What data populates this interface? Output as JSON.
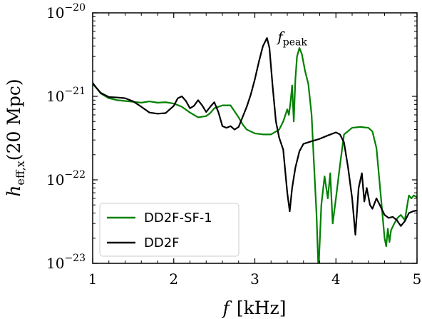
{
  "chart_data": {
    "type": "line",
    "xlabel": {
      "symbol": "f",
      "unit": "[kHz]"
    },
    "ylabel": {
      "symbol": "h",
      "subscript": "eff,x",
      "tail": "(20 Mpc)"
    },
    "xlim": [
      1,
      5
    ],
    "ylim": [
      1e-23,
      1e-20
    ],
    "yscale": "log",
    "x_ticks": [
      1,
      2,
      3,
      4,
      5
    ],
    "x_tick_labels": [
      "1",
      "2",
      "3",
      "4",
      "5"
    ],
    "y_ticks": [
      1e-23,
      1e-22,
      1e-21,
      1e-20
    ],
    "y_tick_labels": [
      {
        "base": "10",
        "exp": "−23"
      },
      {
        "base": "10",
        "exp": "−22"
      },
      {
        "base": "10",
        "exp": "−21"
      },
      {
        "base": "10",
        "exp": "−20"
      }
    ],
    "grid": false,
    "legend_position": "lower-left",
    "annotation": {
      "symbol": "f",
      "subscript": "peak",
      "x": 3.28,
      "y": 4.5e-21
    },
    "series": [
      {
        "name": "DD2F-SF-1",
        "color": "#008000",
        "points": [
          [
            1.0,
            1.4e-21
          ],
          [
            1.05,
            1.25e-21
          ],
          [
            1.1,
            1.08e-21
          ],
          [
            1.2,
            9.5e-22
          ],
          [
            1.3,
            9e-22
          ],
          [
            1.4,
            8.8e-22
          ],
          [
            1.5,
            8.6e-22
          ],
          [
            1.6,
            8.4e-22
          ],
          [
            1.7,
            8.7e-22
          ],
          [
            1.8,
            8.4e-22
          ],
          [
            1.9,
            8.5e-22
          ],
          [
            2.0,
            8.2e-22
          ],
          [
            2.1,
            7.5e-22
          ],
          [
            2.2,
            6.4e-22
          ],
          [
            2.3,
            5.6e-22
          ],
          [
            2.4,
            5.8e-22
          ],
          [
            2.45,
            6.3e-22
          ],
          [
            2.5,
            7.2e-22
          ],
          [
            2.6,
            7.8e-22
          ],
          [
            2.7,
            7.8e-22
          ],
          [
            2.8,
            5.6e-22
          ],
          [
            2.85,
            4.6e-22
          ],
          [
            2.9,
            4e-22
          ],
          [
            3.0,
            3.6e-22
          ],
          [
            3.1,
            3.5e-22
          ],
          [
            3.2,
            3.5e-22
          ],
          [
            3.3,
            4e-22
          ],
          [
            3.35,
            5e-22
          ],
          [
            3.4,
            7e-22
          ],
          [
            3.42,
            6e-22
          ],
          [
            3.44,
            8.5e-22
          ],
          [
            3.46,
            1.35e-21
          ],
          [
            3.48,
            5e-22
          ],
          [
            3.5,
            1.6e-21
          ],
          [
            3.52,
            3e-21
          ],
          [
            3.55,
            3.8e-21
          ],
          [
            3.58,
            3.2e-21
          ],
          [
            3.62,
            2e-21
          ],
          [
            3.66,
            1.4e-21
          ],
          [
            3.7,
            6e-22
          ],
          [
            3.73,
            1.5e-22
          ],
          [
            3.76,
            4e-23
          ],
          [
            3.785,
            8e-24
          ],
          [
            3.82,
            5e-23
          ],
          [
            3.86,
            1.1e-22
          ],
          [
            3.9,
            6e-23
          ],
          [
            3.93,
            1.2e-22
          ],
          [
            3.96,
            3e-23
          ],
          [
            4.0,
            6e-23
          ],
          [
            4.05,
            1.5e-22
          ],
          [
            4.1,
            3.5e-22
          ],
          [
            4.2,
            4.2e-22
          ],
          [
            4.3,
            4.3e-22
          ],
          [
            4.4,
            4.2e-22
          ],
          [
            4.45,
            3.8e-22
          ],
          [
            4.5,
            2.4e-22
          ],
          [
            4.55,
            7e-23
          ],
          [
            4.6,
            2e-23
          ],
          [
            4.62,
            1.6e-23
          ],
          [
            4.64,
            2.6e-23
          ],
          [
            4.66,
            1.8e-23
          ],
          [
            4.68,
            2.5e-23
          ],
          [
            4.72,
            3e-23
          ],
          [
            4.76,
            3.5e-23
          ],
          [
            4.8,
            3.8e-23
          ],
          [
            4.85,
            3.3e-23
          ],
          [
            4.88,
            5e-23
          ],
          [
            4.9,
            6.5e-23
          ],
          [
            4.93,
            6e-23
          ],
          [
            4.96,
            6.5e-23
          ],
          [
            5.0,
            6.2e-23
          ]
        ]
      },
      {
        "name": "DD2F",
        "color": "#000000",
        "points": [
          [
            1.0,
            1.45e-21
          ],
          [
            1.05,
            1.25e-21
          ],
          [
            1.1,
            1.1e-21
          ],
          [
            1.2,
            9.8e-22
          ],
          [
            1.3,
            9.7e-22
          ],
          [
            1.4,
            9.5e-22
          ],
          [
            1.5,
            8.7e-22
          ],
          [
            1.6,
            7.5e-22
          ],
          [
            1.7,
            6.4e-22
          ],
          [
            1.8,
            6.2e-22
          ],
          [
            1.9,
            6.3e-22
          ],
          [
            2.0,
            7.7e-22
          ],
          [
            2.05,
            9.5e-22
          ],
          [
            2.1,
            1e-21
          ],
          [
            2.15,
            8.8e-22
          ],
          [
            2.2,
            7.2e-22
          ],
          [
            2.25,
            7.7e-22
          ],
          [
            2.3,
            9e-22
          ],
          [
            2.35,
            7.8e-22
          ],
          [
            2.4,
            6.5e-22
          ],
          [
            2.45,
            7.5e-22
          ],
          [
            2.5,
            8.5e-22
          ],
          [
            2.55,
            6.5e-22
          ],
          [
            2.6,
            4.4e-22
          ],
          [
            2.65,
            4.2e-22
          ],
          [
            2.7,
            4.4e-22
          ],
          [
            2.75,
            4e-22
          ],
          [
            2.8,
            4.3e-22
          ],
          [
            2.9,
            7.5e-22
          ],
          [
            2.95,
            1.05e-21
          ],
          [
            3.0,
            1.6e-21
          ],
          [
            3.05,
            2.6e-21
          ],
          [
            3.1,
            4e-21
          ],
          [
            3.15,
            5e-21
          ],
          [
            3.18,
            3.8e-21
          ],
          [
            3.22,
            1.3e-21
          ],
          [
            3.26,
            5e-22
          ],
          [
            3.3,
            3.2e-22
          ],
          [
            3.35,
            2.3e-22
          ],
          [
            3.4,
            7e-23
          ],
          [
            3.43,
            4.2e-23
          ],
          [
            3.46,
            8e-23
          ],
          [
            3.5,
            1.4e-22
          ],
          [
            3.55,
            2.2e-22
          ],
          [
            3.6,
            2.7e-22
          ],
          [
            3.7,
            2.9e-22
          ],
          [
            3.8,
            3.1e-22
          ],
          [
            3.9,
            3.4e-22
          ],
          [
            4.0,
            3.7e-22
          ],
          [
            4.05,
            3.5e-22
          ],
          [
            4.1,
            2.8e-22
          ],
          [
            4.15,
            1.4e-22
          ],
          [
            4.2,
            6e-23
          ],
          [
            4.24,
            2.2e-23
          ],
          [
            4.28,
            8e-23
          ],
          [
            4.32,
            1.2e-22
          ],
          [
            4.35,
            5.5e-23
          ],
          [
            4.38,
            8e-23
          ],
          [
            4.42,
            5e-23
          ],
          [
            4.45,
            4.5e-23
          ],
          [
            4.5,
            6e-23
          ],
          [
            4.55,
            4.8e-23
          ],
          [
            4.6,
            3.8e-23
          ],
          [
            4.65,
            3.5e-23
          ],
          [
            4.7,
            3.6e-23
          ],
          [
            4.75,
            3.3e-23
          ],
          [
            4.8,
            2.8e-23
          ],
          [
            4.85,
            3.2e-23
          ],
          [
            4.9,
            4e-23
          ],
          [
            4.95,
            4.2e-23
          ],
          [
            5.0,
            4.3e-23
          ]
        ]
      }
    ]
  }
}
